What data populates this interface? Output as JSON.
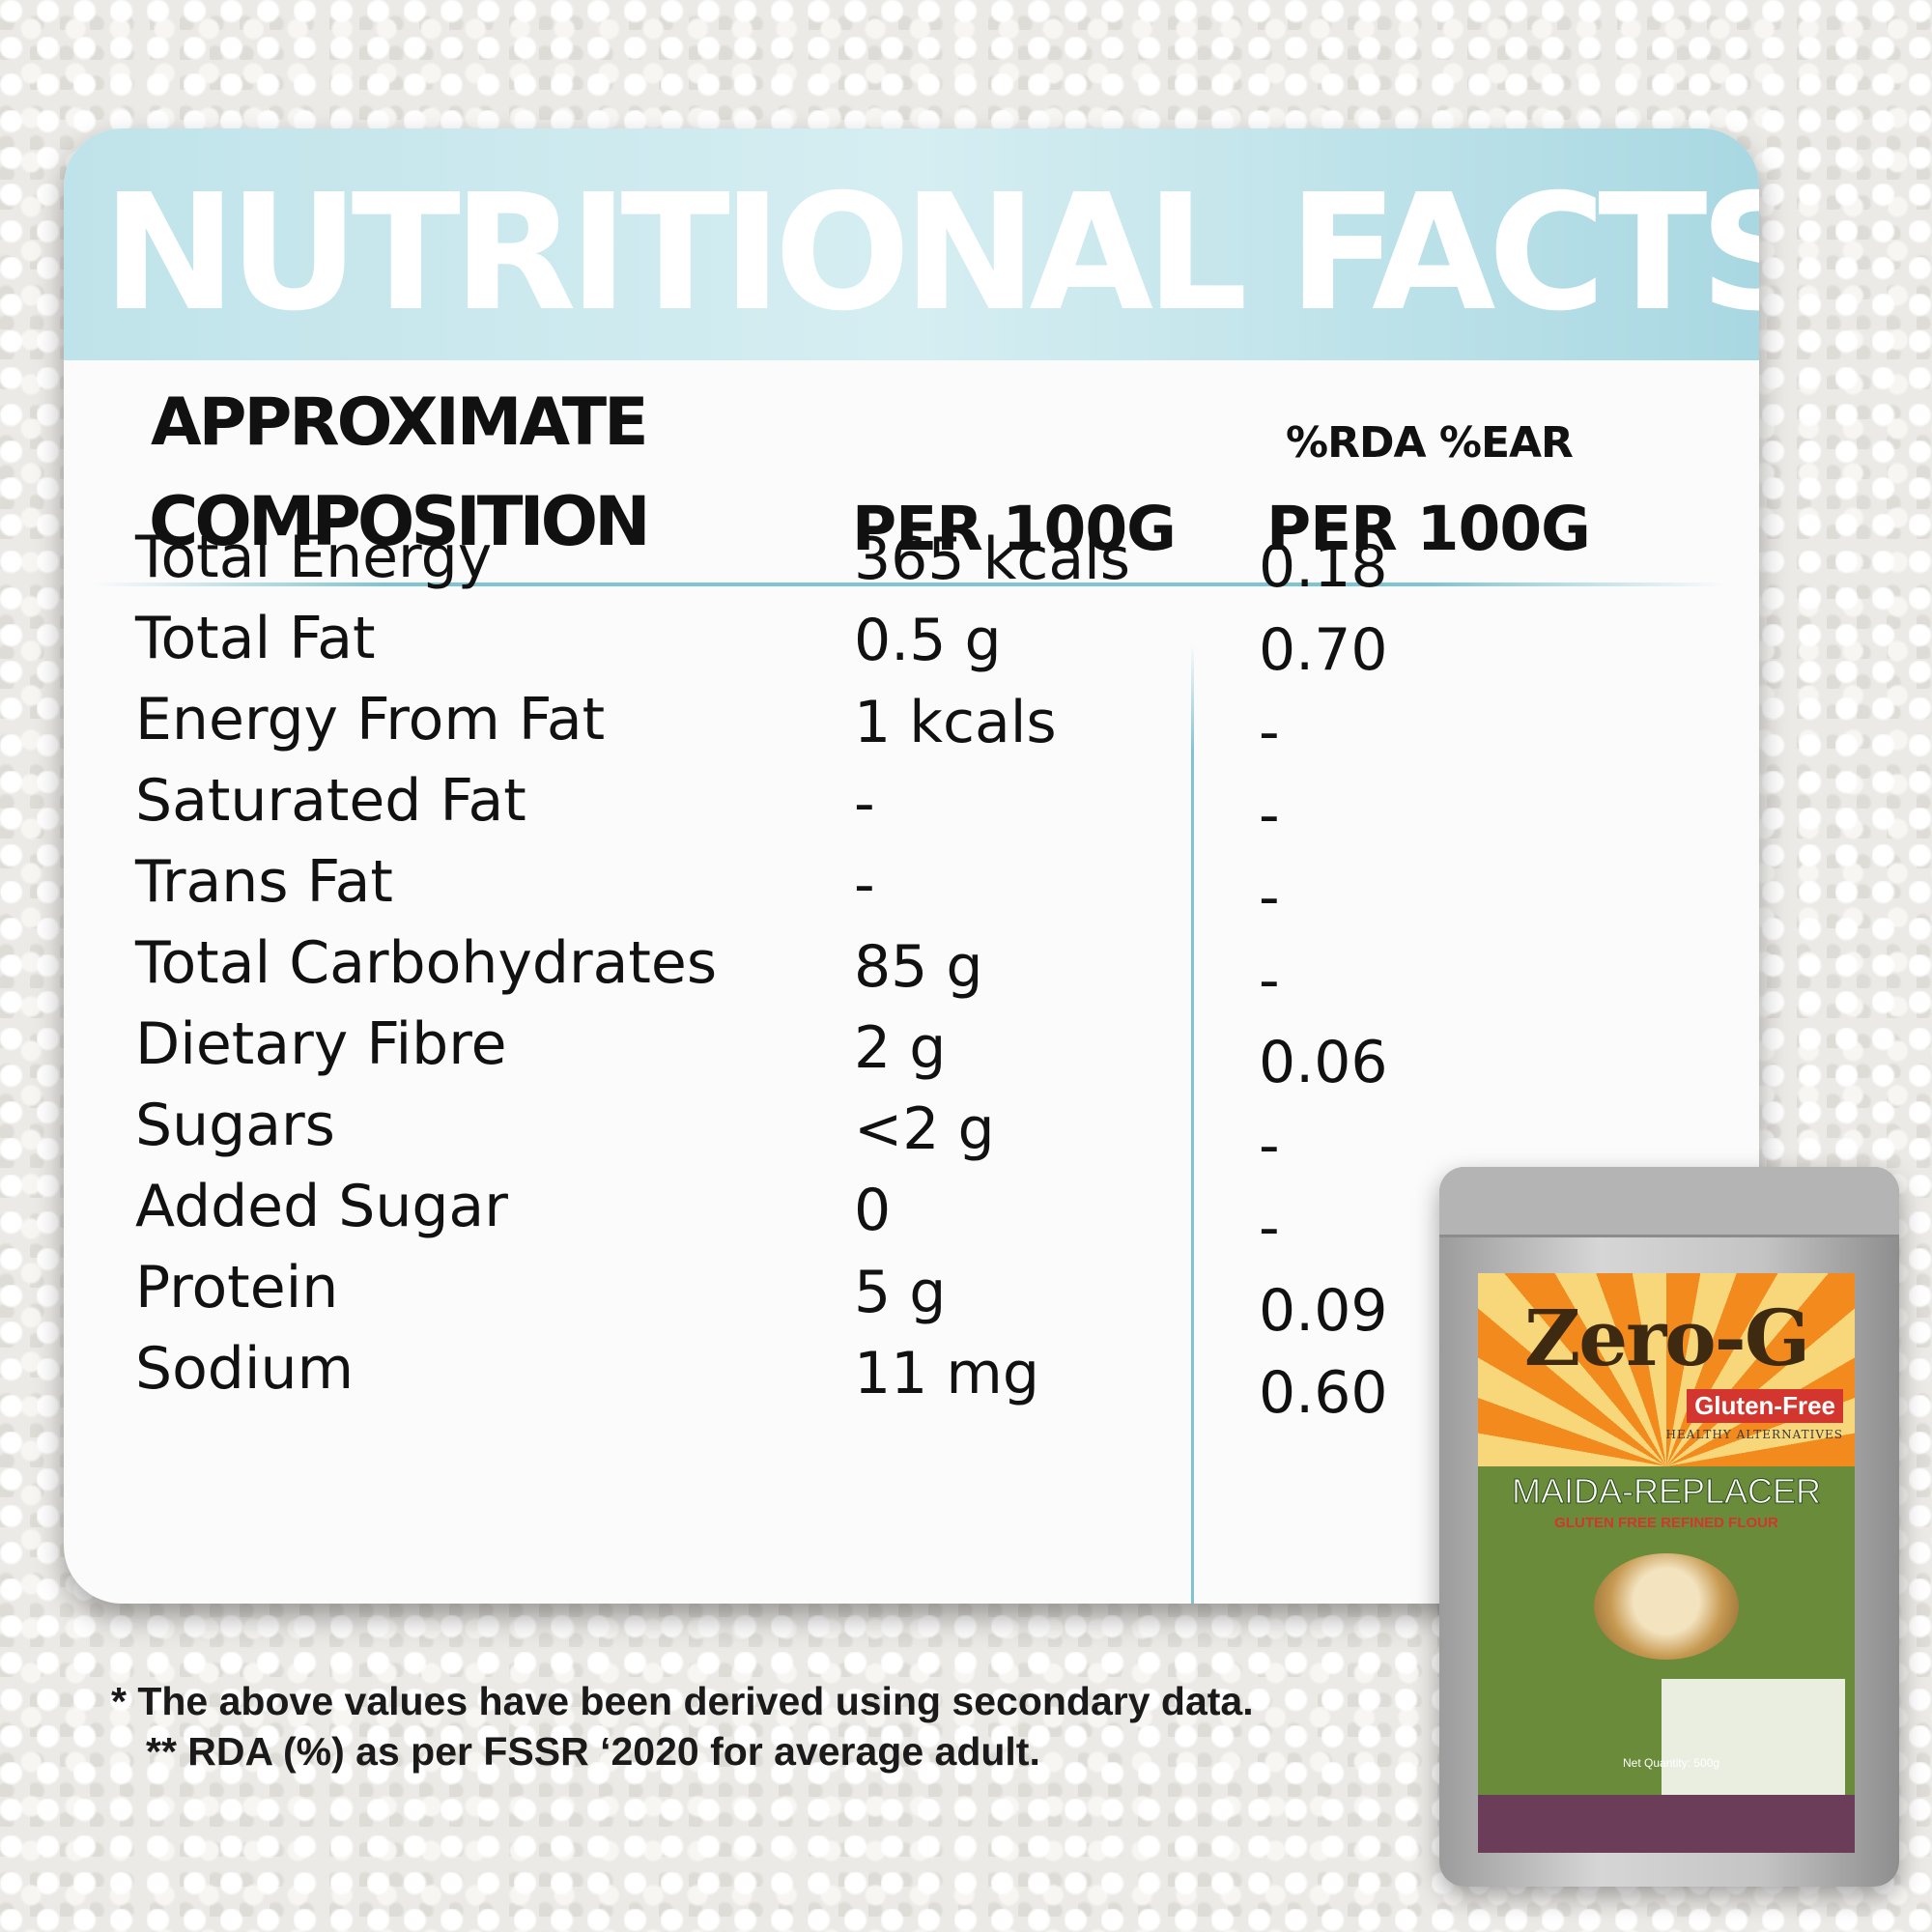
{
  "title": "NUTRITIONAL FACTS",
  "header": {
    "label_line1": "APPROXIMATE",
    "label_line2": "COMPOSITION",
    "per100_col": "PER 100G",
    "rda_ear_line1": "%RDA %EAR",
    "rda_ear_line2": "PER 100G"
  },
  "rows": [
    {
      "name": "Total Energy",
      "per100": "365 kcals",
      "rda": "0.18"
    },
    {
      "name": "Total Fat",
      "per100": "0.5 g",
      "rda": "0.70"
    },
    {
      "name": "Energy From Fat",
      "per100": "1 kcals",
      "rda": "-"
    },
    {
      "name": "Saturated Fat",
      "per100": "-",
      "rda": "-"
    },
    {
      "name": "Trans Fat",
      "per100": "-",
      "rda": "-"
    },
    {
      "name": "Total Carbohydrates",
      "per100": "85 g",
      "rda": "-"
    },
    {
      "name": "Dietary Fibre",
      "per100": "2 g",
      "rda": "0.06"
    },
    {
      "name": "Sugars",
      "per100": "<2 g",
      "rda": "-"
    },
    {
      "name": "Added Sugar",
      "per100": "0",
      "rda": "-"
    },
    {
      "name": "Protein",
      "per100": "5 g",
      "rda": "0.09"
    },
    {
      "name": "Sodium",
      "per100": "11 mg",
      "rda": "0.60"
    }
  ],
  "footnotes": {
    "line1": "* The above values have been derived using secondary data.",
    "line2": "** RDA (%) as per FSSR ‘2020 for average adult."
  },
  "package": {
    "brand": "Zero-G",
    "badge": "Gluten-Free",
    "tagline": "HEALTHY ALTERNATIVES",
    "product": "MAIDA-REPLACER",
    "subtitle": "GLUTEN FREE REFINED FLOUR",
    "net_quantity": "Net Quantity: 500g"
  },
  "colors": {
    "header_band": "#bfe3ea",
    "rule": "#7fc4d2",
    "text": "#111111",
    "card": "#fbfbfb"
  }
}
